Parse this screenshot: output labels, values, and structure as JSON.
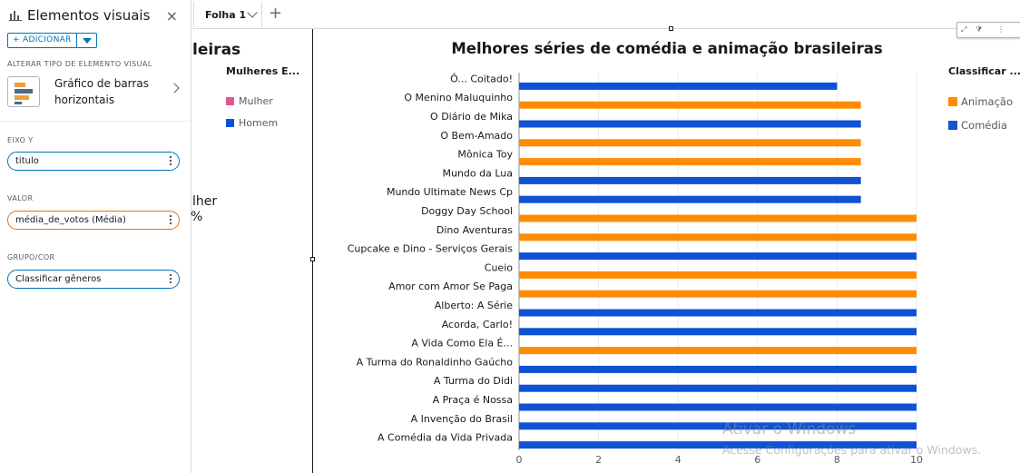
{
  "panel": {
    "title": "Elementos visuais",
    "close_icon": "×",
    "add_label": "+ ADICIONAR",
    "change_type_label": "ALTERAR TIPO DE ELEMENTO VISUAL",
    "visual_type": "Gráfico de barras horizontais",
    "y_axis_label": "EIXO Y",
    "y_axis_field": "titulo",
    "value_label": "VALOR",
    "value_field": "média_de_votos (Média)",
    "group_label": "GRUPO/COR",
    "group_field": "Classificar gêneros"
  },
  "tabs": {
    "sheet_label": "Folha 1",
    "add_icon": "+"
  },
  "partial_visual": {
    "title_fragment": "leiras",
    "legend_title": "Mulheres E...",
    "legend_items": [
      {
        "label": "Mulher",
        "color": "#e8538f"
      },
      {
        "label": "Homem",
        "color": "#0f52d4"
      }
    ],
    "fragment_1": "lher",
    "fragment_2": "%"
  },
  "chart_data": {
    "type": "bar",
    "orientation": "horizontal",
    "title": "Melhores séries de comédia e animação brasileiras",
    "legend_title": "Classificar ...",
    "legend": [
      {
        "name": "Animação",
        "color": "#ff8c00"
      },
      {
        "name": "Comédia",
        "color": "#0f52d4"
      }
    ],
    "xlim": [
      0,
      10
    ],
    "x_ticks": [
      "0",
      "2",
      "4",
      "6",
      "8",
      "10"
    ],
    "grid": true,
    "categories": [
      "Ô... Coitado!",
      "O Menino Maluquinho",
      "O Diário de Mika",
      "O Bem-Amado",
      "Mônica Toy",
      "Mundo da Lua",
      "Mundo Ultimate News Cp",
      "Doggy Day School",
      "Dino Aventuras",
      "Cupcake e Dino - Serviços Gerais",
      "Cueio",
      "Amor com Amor Se Paga",
      "Alberto: A Série",
      "Acorda, Carlo!",
      "A Vida Como Ela É...",
      "A Turma do Ronaldinho Gaúcho",
      "A Turma do Didi",
      "A Praça é Nossa",
      "A Invenção do Brasil",
      "A Comédia da Vida Privada"
    ],
    "values": [
      8.0,
      8.6,
      8.6,
      8.6,
      8.6,
      8.6,
      8.6,
      10,
      10,
      10,
      10,
      10,
      10,
      10,
      10,
      10,
      10,
      10,
      10,
      10
    ],
    "groups": [
      "Comédia",
      "Animação",
      "Comédia",
      "Animação",
      "Animação",
      "Comédia",
      "Comédia",
      "Animação",
      "Animação",
      "Comédia",
      "Animação",
      "Animação",
      "Comédia",
      "Comédia",
      "Animação",
      "Comédia",
      "Comédia",
      "Comédia",
      "Comédia",
      "Comédia"
    ]
  },
  "watermark": {
    "line1": "Ativar o Windows",
    "line2": "Acesse Configurações para ativar o Windows."
  }
}
